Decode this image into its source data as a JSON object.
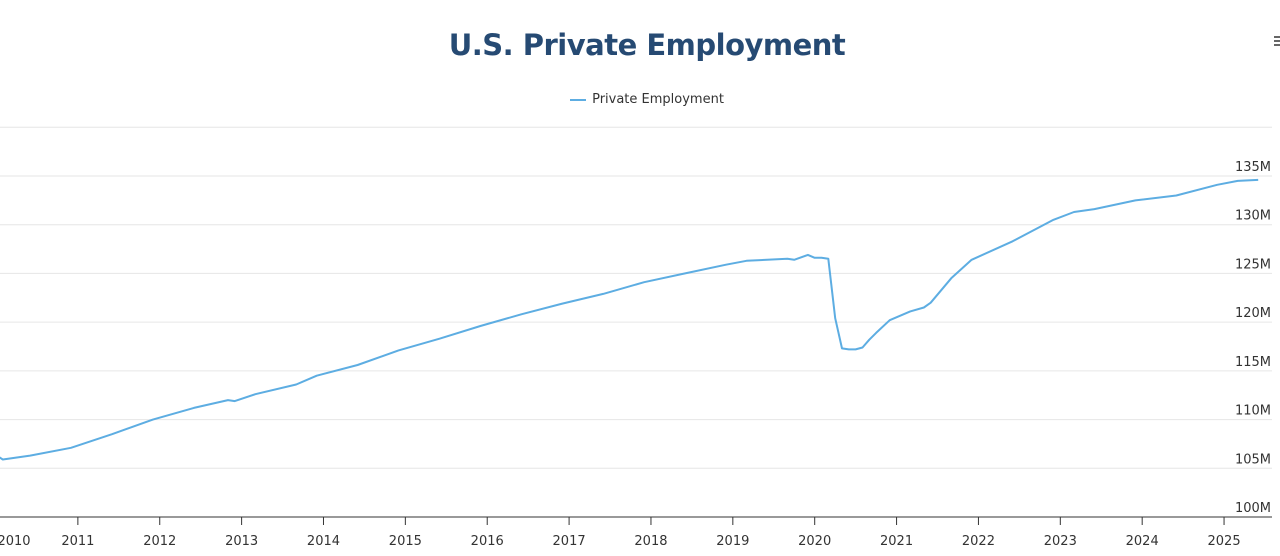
{
  "title": "U.S. Private Employment",
  "legend": {
    "label": "Private Employment"
  },
  "colors": {
    "series": "#5dade2",
    "title": "#264a73"
  },
  "menu_icon": "hamburger-icon",
  "chart_data": {
    "type": "line",
    "title": "U.S. Private Employment",
    "xlabel": "",
    "ylabel": "",
    "y_unit": "millions",
    "ylim": [
      100,
      140
    ],
    "yticks": [
      100,
      105,
      110,
      115,
      120,
      125,
      130,
      135
    ],
    "ytick_labels": [
      "100M",
      "105M",
      "110M",
      "115M",
      "120M",
      "125M",
      "130M",
      "135M"
    ],
    "xticks": [
      "2010",
      "2011",
      "2012",
      "2013",
      "2014",
      "2015",
      "2016",
      "2017",
      "2018",
      "2019",
      "2020",
      "2021",
      "2022",
      "2023",
      "2024",
      "2025"
    ],
    "grid": true,
    "legend_position": "top-center",
    "series": [
      {
        "name": "Private Employment",
        "points": [
          [
            "2009-12",
            106.8
          ],
          [
            "2010-02",
            105.9
          ],
          [
            "2010-06",
            106.3
          ],
          [
            "2010-12",
            107.1
          ],
          [
            "2011-06",
            108.5
          ],
          [
            "2011-12",
            110.0
          ],
          [
            "2012-06",
            111.2
          ],
          [
            "2012-11",
            112.0
          ],
          [
            "2012-12",
            111.9
          ],
          [
            "2013-03",
            112.6
          ],
          [
            "2013-09",
            113.6
          ],
          [
            "2013-12",
            114.5
          ],
          [
            "2014-06",
            115.6
          ],
          [
            "2014-12",
            117.1
          ],
          [
            "2015-06",
            118.3
          ],
          [
            "2015-12",
            119.6
          ],
          [
            "2016-06",
            120.8
          ],
          [
            "2016-12",
            121.9
          ],
          [
            "2017-06",
            122.9
          ],
          [
            "2017-12",
            124.1
          ],
          [
            "2018-06",
            125.0
          ],
          [
            "2018-12",
            125.9
          ],
          [
            "2019-03",
            126.3
          ],
          [
            "2019-09",
            126.5
          ],
          [
            "2019-10",
            126.4
          ],
          [
            "2019-12",
            126.9
          ],
          [
            "2020-01",
            126.6
          ],
          [
            "2020-02",
            126.6
          ],
          [
            "2020-03",
            126.5
          ],
          [
            "2020-04",
            120.4
          ],
          [
            "2020-05",
            117.3
          ],
          [
            "2020-06",
            117.2
          ],
          [
            "2020-07",
            117.2
          ],
          [
            "2020-08",
            117.4
          ],
          [
            "2020-09",
            118.2
          ],
          [
            "2020-10",
            118.9
          ],
          [
            "2020-12",
            120.2
          ],
          [
            "2021-03",
            121.1
          ],
          [
            "2021-05",
            121.5
          ],
          [
            "2021-06",
            122.0
          ],
          [
            "2021-09",
            124.5
          ],
          [
            "2021-12",
            126.4
          ],
          [
            "2022-06",
            128.3
          ],
          [
            "2022-12",
            130.5
          ],
          [
            "2023-03",
            131.3
          ],
          [
            "2023-06",
            131.6
          ],
          [
            "2023-12",
            132.5
          ],
          [
            "2024-06",
            133.0
          ],
          [
            "2024-12",
            134.1
          ],
          [
            "2025-03",
            134.5
          ],
          [
            "2025-06",
            134.6
          ]
        ]
      }
    ]
  }
}
